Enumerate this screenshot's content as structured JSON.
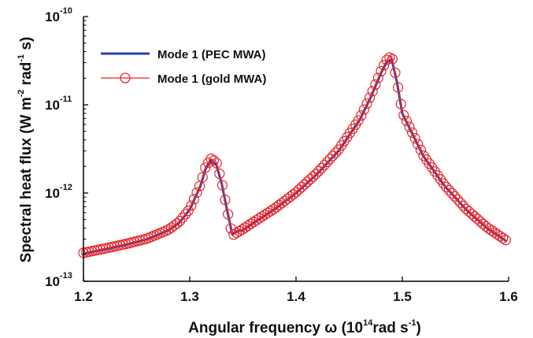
{
  "chart_data": {
    "type": "line",
    "xlabel": "Angular frequency ω (10^14 rad s^-1)",
    "ylabel": "Spectral heat flux (W m^-2 rad^-1 s)",
    "xlim": [
      1.2,
      1.6
    ],
    "ylim": [
      1e-13,
      1e-10
    ],
    "y_scale": "log",
    "x_ticks": [
      "1.2",
      "1.3",
      "1.4",
      "1.5",
      "1.6"
    ],
    "y_ticks": [
      {
        "base": "10",
        "exp": "-13"
      },
      {
        "base": "10",
        "exp": "-12"
      },
      {
        "base": "10",
        "exp": "-11"
      },
      {
        "base": "10",
        "exp": "-10"
      }
    ],
    "legend_position": "top-left",
    "series": [
      {
        "name": "Mode 1 (PEC MWA)",
        "color": "#2c3fa8",
        "style": "line",
        "x": [
          1.2,
          1.22,
          1.24,
          1.26,
          1.28,
          1.29,
          1.3,
          1.31,
          1.315,
          1.32,
          1.325,
          1.33,
          1.335,
          1.34,
          1.345,
          1.35,
          1.36,
          1.38,
          1.4,
          1.42,
          1.44,
          1.46,
          1.47,
          1.48,
          1.485,
          1.49,
          1.495,
          1.5,
          1.52,
          1.54,
          1.56,
          1.58,
          1.598
        ],
        "y": [
          2.05e-13,
          2.3e-13,
          2.6e-13,
          3e-13,
          3.8e-13,
          4.6e-13,
          6.5e-13,
          1.2e-12,
          1.9e-12,
          2.3e-12,
          2.1e-12,
          1.3e-12,
          6.5e-13,
          3.4e-13,
          3.7e-13,
          3.8e-13,
          4.6e-13,
          6.6e-13,
          1e-12,
          1.65e-12,
          3e-12,
          6.8e-12,
          1.2e-11,
          2.3e-11,
          3e-11,
          3.3e-11,
          1.8e-11,
          8e-12,
          2.6e-12,
          1.2e-12,
          6.5e-13,
          4e-13,
          2.85e-13
        ]
      },
      {
        "name": "Mode 1 (gold MWA)",
        "color": "#e8262a",
        "style": "line-circle-markers",
        "x": [
          1.2,
          1.22,
          1.24,
          1.26,
          1.28,
          1.29,
          1.3,
          1.31,
          1.315,
          1.32,
          1.325,
          1.33,
          1.335,
          1.34,
          1.345,
          1.35,
          1.36,
          1.38,
          1.4,
          1.42,
          1.44,
          1.46,
          1.47,
          1.48,
          1.485,
          1.49,
          1.495,
          1.5,
          1.52,
          1.54,
          1.56,
          1.58,
          1.598
        ],
        "y": [
          2.1e-13,
          2.35e-13,
          2.65e-13,
          3.05e-13,
          3.85e-13,
          4.7e-13,
          6.6e-13,
          1.25e-12,
          2e-12,
          2.45e-12,
          2.25e-12,
          1.35e-12,
          6.6e-13,
          3.3e-13,
          3.6e-13,
          3.9e-13,
          4.7e-13,
          6.7e-13,
          1.02e-12,
          1.7e-12,
          3.1e-12,
          7e-12,
          1.25e-11,
          2.4e-11,
          3.2e-11,
          3.6e-11,
          1.85e-11,
          8.2e-12,
          2.65e-12,
          1.22e-12,
          6.6e-13,
          4.05e-13,
          2.9e-13
        ]
      }
    ]
  }
}
